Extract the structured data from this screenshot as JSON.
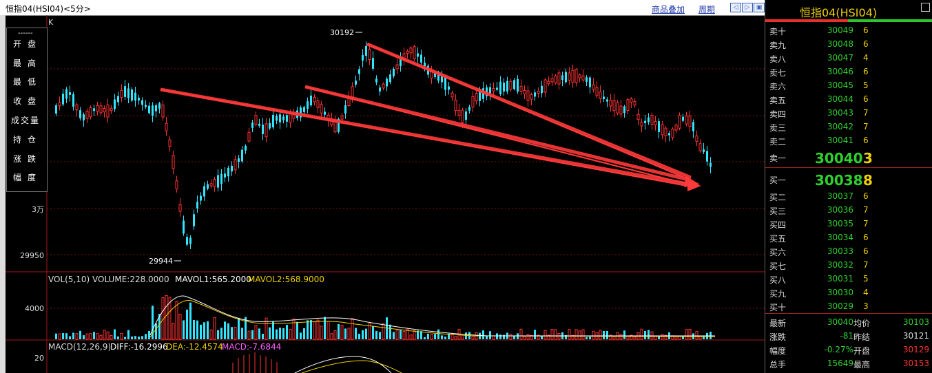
{
  "window": {
    "title": "恒指04(HSI04)<5分>",
    "links": [
      "商品叠加",
      "周期"
    ],
    "nav_buttons": [
      "◁",
      "▷",
      "▣"
    ]
  },
  "chart_info": {
    "k_label": "K",
    "info_labels": [
      "------",
      "开盘",
      "最高",
      "最低",
      "收盘",
      "成交量",
      "持仓",
      "涨跌",
      "幅度"
    ],
    "price_axis_ticks": [
      "3万",
      "29950"
    ],
    "high_marker": "30192",
    "low_marker": "29944",
    "volume_header": {
      "vol": "VOL(5,10) VOLUME:228.0000",
      "mavol1": "MAVOL1:565.2000",
      "mavol2": "MAVOL2:568.9000"
    },
    "volume_axis_tick": "4000",
    "macd_header": {
      "name": "MACD(12,26,9)",
      "diff": "DIFF:-16.2996",
      "dea": "DEA:-12.4574",
      "macd": "MACD:-7.6844"
    },
    "macd_axis_tick": "20"
  },
  "chart_data": {
    "type": "candlestick",
    "high": 30192,
    "low": 29944,
    "y_ticks": [
      30000,
      29950
    ],
    "volume_mavol1": 565.2,
    "volume_mavol2": 568.9,
    "volume_last": 228,
    "macd": {
      "diff": -16.2996,
      "dea": -12.4574,
      "macd": -7.6844
    }
  },
  "colors": {
    "up": "#ff3232",
    "down": "#32e6ff",
    "ma1": "#ffffff",
    "ma2": "#f0d000",
    "arrow": "#ff3a3a",
    "grid": "#7a1010"
  },
  "quote_panel": {
    "title": "恒指04(HSI04)",
    "asks": [
      {
        "name": "卖十",
        "price": "30049",
        "qty": "6"
      },
      {
        "name": "卖九",
        "price": "30048",
        "qty": "6"
      },
      {
        "name": "卖八",
        "price": "30047",
        "qty": "4"
      },
      {
        "name": "卖七",
        "price": "30046",
        "qty": "6"
      },
      {
        "name": "卖六",
        "price": "30045",
        "qty": "5"
      },
      {
        "name": "卖五",
        "price": "30044",
        "qty": "6"
      },
      {
        "name": "卖四",
        "price": "30043",
        "qty": "7"
      },
      {
        "name": "卖三",
        "price": "30042",
        "qty": "7"
      },
      {
        "name": "卖二",
        "price": "30041",
        "qty": "6"
      }
    ],
    "ask1": {
      "name": "卖一",
      "price": "30040",
      "qty": "3"
    },
    "bid1": {
      "name": "买一",
      "price": "30038",
      "qty": "8"
    },
    "bids": [
      {
        "name": "买二",
        "price": "30037",
        "qty": "6"
      },
      {
        "name": "买三",
        "price": "30036",
        "qty": "7"
      },
      {
        "name": "买四",
        "price": "30035",
        "qty": "7"
      },
      {
        "name": "买五",
        "price": "30034",
        "qty": "6"
      },
      {
        "name": "买六",
        "price": "30033",
        "qty": "6"
      },
      {
        "name": "买七",
        "price": "30032",
        "qty": "7"
      },
      {
        "name": "买八",
        "price": "30031",
        "qty": "5"
      },
      {
        "name": "买九",
        "price": "30030",
        "qty": "4"
      },
      {
        "name": "买十",
        "price": "30029",
        "qty": "3"
      }
    ],
    "stats": [
      {
        "l1": "最新",
        "v1": "30040",
        "l2": "均价",
        "v2": "30103"
      },
      {
        "l1": "涨跌",
        "v1": "-81",
        "l2": "昨结",
        "v2": "30121"
      },
      {
        "l1": "幅度",
        "v1": "-0.27%",
        "l2": "开盘",
        "v2": "30129"
      },
      {
        "l1": "总手",
        "v1": "15649",
        "l2": "最高",
        "v2": "30153"
      }
    ]
  }
}
